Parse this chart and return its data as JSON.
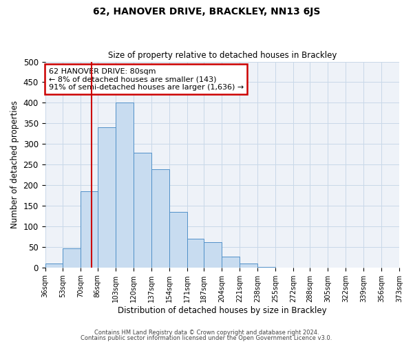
{
  "title": "62, HANOVER DRIVE, BRACKLEY, NN13 6JS",
  "subtitle": "Size of property relative to detached houses in Brackley",
  "xlabel": "Distribution of detached houses by size in Brackley",
  "ylabel": "Number of detached properties",
  "bin_labels": [
    "36sqm",
    "53sqm",
    "70sqm",
    "86sqm",
    "103sqm",
    "120sqm",
    "137sqm",
    "154sqm",
    "171sqm",
    "187sqm",
    "204sqm",
    "221sqm",
    "238sqm",
    "255sqm",
    "272sqm",
    "288sqm",
    "305sqm",
    "322sqm",
    "339sqm",
    "356sqm",
    "373sqm"
  ],
  "bin_edges": [
    36,
    53,
    70,
    86,
    103,
    120,
    137,
    154,
    171,
    187,
    204,
    221,
    238,
    255,
    272,
    288,
    305,
    322,
    339,
    356,
    373
  ],
  "bar_heights": [
    10,
    47,
    185,
    340,
    400,
    278,
    238,
    135,
    70,
    62,
    26,
    10,
    1,
    0,
    0,
    0,
    0,
    0,
    0,
    0,
    2
  ],
  "bar_color": "#c8dcf0",
  "bar_edge_color": "#5090c8",
  "grid_color": "#c8d8e8",
  "vline_x": 80,
  "vline_color": "#cc0000",
  "annotation_text": "62 HANOVER DRIVE: 80sqm\n← 8% of detached houses are smaller (143)\n91% of semi-detached houses are larger (1,636) →",
  "annotation_box_color": "#ffffff",
  "annotation_box_edge": "#cc0000",
  "ylim": [
    0,
    500
  ],
  "yticks": [
    0,
    50,
    100,
    150,
    200,
    250,
    300,
    350,
    400,
    450,
    500
  ],
  "footer_line1": "Contains HM Land Registry data © Crown copyright and database right 2024.",
  "footer_line2": "Contains public sector information licensed under the Open Government Licence v3.0.",
  "background_color": "#ffffff",
  "plot_bg_color": "#eef2f8"
}
